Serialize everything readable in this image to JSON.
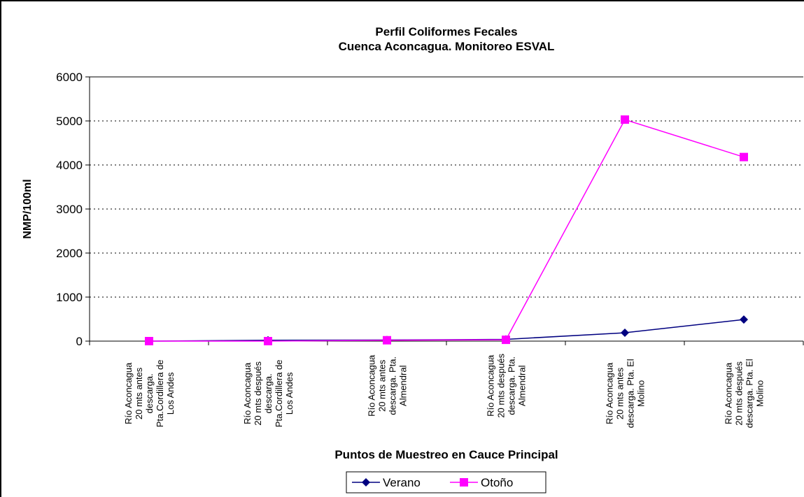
{
  "chart_data": {
    "type": "line",
    "title": "Perfil Coliformes Fecales\nCuenca Aconcagua. Monitoreo ESVAL",
    "x_label": "Puntos de Muestreo en Cauce Principal",
    "y_label": "NMP/100ml",
    "categories": [
      "Río Aconcagua\n20 mts antes\ndescarga.\nPta.Cordillera de\nLos Andes",
      "Río Aconcagua\n20 mts después\ndescarga.\nPta.Cordillera de\nLos Andes",
      "Río Aconcagua\n20 mts antes\ndescarga. Pta.\nAlmendral",
      "Río Aconcagua\n20 mts después\ndescarga. Pta.\nAlmendral",
      "Río Aconcagua\n20 mts antes\ndescarga. Pta. El\nMolino",
      "Río Aconcagua\n20 mts después\ndescarga. Pta. El\nMolino"
    ],
    "series": [
      {
        "name": "Verano",
        "color": "#000080",
        "marker": "diamond",
        "values": [
          0,
          20,
          25,
          40,
          190,
          490
        ]
      },
      {
        "name": "Otoño",
        "color": "#ff00ff",
        "marker": "square",
        "values": [
          0,
          0,
          20,
          30,
          5030,
          4180
        ]
      }
    ],
    "ylim": [
      0,
      6000
    ],
    "yticks": [
      0,
      1000,
      2000,
      3000,
      4000,
      5000,
      6000
    ],
    "grid": true,
    "legend": "bottom"
  }
}
